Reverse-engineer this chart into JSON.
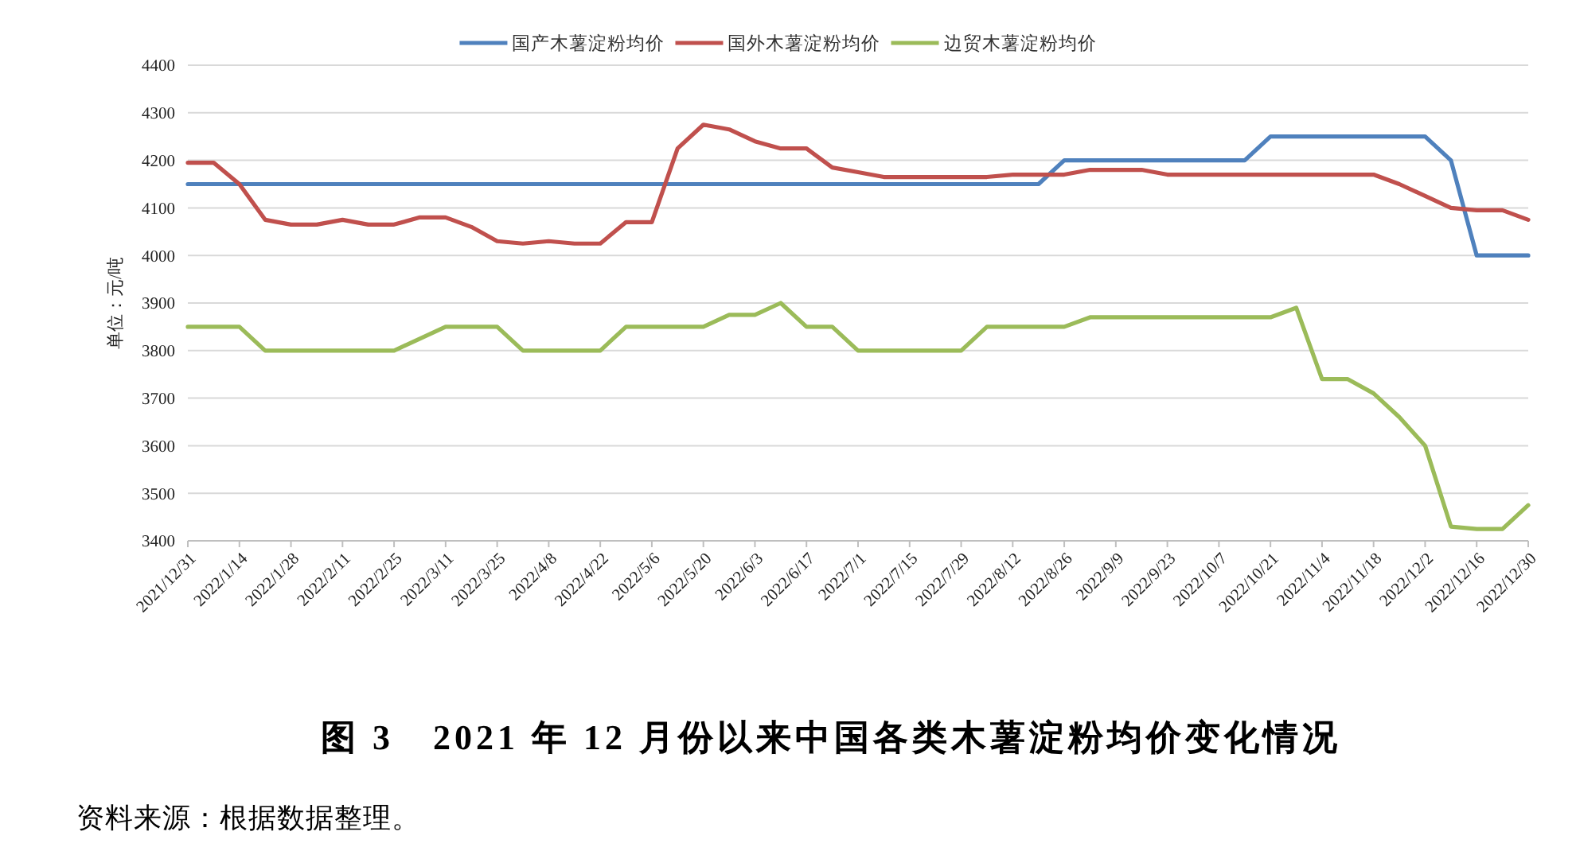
{
  "chart_data": {
    "type": "line",
    "title": "图 3　2021 年 12 月份以来中国各类木薯淀粉均价变化情况",
    "ylabel": "单位：元/吨",
    "categories": [
      "2021/12/31",
      null,
      "2022/1/14",
      null,
      "2022/1/28",
      null,
      "2022/2/11",
      null,
      "2022/2/25",
      null,
      "2022/3/11",
      null,
      "2022/3/25",
      null,
      "2022/4/8",
      null,
      "2022/4/22",
      null,
      "2022/5/6",
      null,
      "2022/5/20",
      null,
      "2022/6/3",
      null,
      "2022/6/17",
      null,
      "2022/7/1",
      null,
      "2022/7/15",
      null,
      "2022/7/29",
      null,
      "2022/8/12",
      null,
      "2022/8/26",
      null,
      "2022/9/9",
      null,
      "2022/9/23",
      null,
      "2022/10/7",
      null,
      "2022/10/21",
      null,
      "2022/11/4",
      null,
      "2022/11/18",
      null,
      "2022/12/2",
      null,
      "2022/12/16",
      null,
      "2022/12/30"
    ],
    "series": [
      {
        "name": "国产木薯淀粉均价",
        "color": "#4f81bd",
        "values": [
          4150,
          4150,
          4150,
          4150,
          4150,
          4150,
          4150,
          4150,
          4150,
          4150,
          4150,
          4150,
          4150,
          4150,
          4150,
          4150,
          4150,
          4150,
          4150,
          4150,
          4150,
          4150,
          4150,
          4150,
          4150,
          4150,
          4150,
          4150,
          4150,
          4150,
          4150,
          4150,
          4150,
          4150,
          4200,
          4200,
          4200,
          4200,
          4200,
          4200,
          4200,
          4200,
          4250,
          4250,
          4250,
          4250,
          4250,
          4250,
          4250,
          4200,
          4000,
          4000,
          4000
        ]
      },
      {
        "name": "国外木薯淀粉均价",
        "color": "#c0504d",
        "values": [
          4195,
          4195,
          4150,
          4075,
          4065,
          4065,
          4075,
          4065,
          4065,
          4080,
          4080,
          4060,
          4030,
          4025,
          4030,
          4025,
          4025,
          4070,
          4070,
          4225,
          4275,
          4265,
          4240,
          4225,
          4225,
          4185,
          4175,
          4165,
          4165,
          4165,
          4165,
          4165,
          4170,
          4170,
          4170,
          4180,
          4180,
          4180,
          4170,
          4170,
          4170,
          4170,
          4170,
          4170,
          4170,
          4170,
          4170,
          4150,
          4125,
          4100,
          4095,
          4095,
          4075
        ]
      },
      {
        "name": "边贸木薯淀粉均价",
        "color": "#9bbb59",
        "values": [
          3850,
          3850,
          3850,
          3800,
          3800,
          3800,
          3800,
          3800,
          3800,
          3825,
          3850,
          3850,
          3850,
          3800,
          3800,
          3800,
          3800,
          3850,
          3850,
          3850,
          3850,
          3875,
          3875,
          3900,
          3850,
          3850,
          3800,
          3800,
          3800,
          3800,
          3800,
          3850,
          3850,
          3850,
          3850,
          3870,
          3870,
          3870,
          3870,
          3870,
          3870,
          3870,
          3870,
          3890,
          3740,
          3740,
          3710,
          3660,
          3600,
          3430,
          3425,
          3425,
          3475
        ]
      }
    ],
    "ylim": [
      3400,
      4400
    ],
    "yticks": [
      3400,
      3500,
      3600,
      3700,
      3800,
      3900,
      4000,
      4100,
      4200,
      4300,
      4400
    ],
    "grid": "y",
    "legend": "top",
    "annotations": [
      "资料来源：根据数据整理。"
    ]
  }
}
